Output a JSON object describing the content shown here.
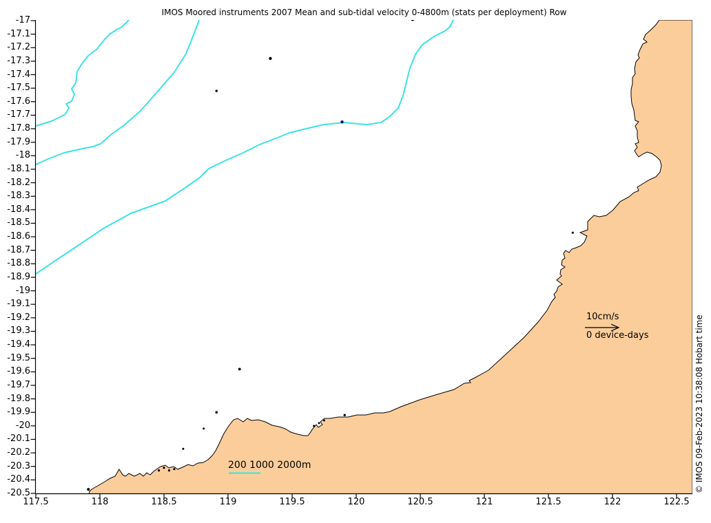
{
  "title": "IMOS Moored instruments 2007 Mean and sub-tidal velocity 0-4800m (stats per deployment) Row",
  "copyright": "© IMOS 09-Feb-2023 10:38:08 Hobart time",
  "axes": {
    "x_tick_labels": [
      "117.5",
      "118",
      "118.5",
      "119",
      "119.5",
      "120",
      "120.5",
      "121",
      "121.5",
      "122",
      "122.5"
    ],
    "y_tick_labels": [
      "-17",
      "-17.1",
      "-17.2",
      "-17.3",
      "-17.4",
      "-17.5",
      "-17.6",
      "-17.7",
      "-17.8",
      "-17.9",
      "-18",
      "-18.1",
      "-18.2",
      "-18.3",
      "-18.4",
      "-18.5",
      "-18.6",
      "-18.7",
      "-18.8",
      "-18.9",
      "-19",
      "-19.1",
      "-19.2",
      "-19.3",
      "-19.4",
      "-19.5",
      "-19.6",
      "-19.7",
      "-19.8",
      "-19.9",
      "-20",
      "-20.1",
      "-20.2",
      "-20.3",
      "-20.4",
      "-20.5"
    ]
  },
  "legend": {
    "velocity_scale_label": "10cm/s",
    "device_days_label": "0 device-days",
    "isobath_label": "200 1000 2000m"
  },
  "colors": {
    "land": "#FACD9B",
    "contour": "#3BE2E2",
    "coast": "#000000",
    "text": "#000000",
    "marker_navy": "#00008B"
  },
  "chart_data": {
    "type": "map",
    "title": "IMOS Moored instruments 2007 Mean and sub-tidal velocity 0-4800m (stats per deployment) Row",
    "xlabel": "",
    "ylabel": "",
    "x_range": [
      117.5,
      122.62
    ],
    "y_range": [
      -20.5,
      -17.0
    ],
    "x_ticks": [
      117.5,
      118,
      118.5,
      119,
      119.5,
      120,
      120.5,
      121,
      121.5,
      122,
      122.5
    ],
    "y_ticks": [
      -17,
      -17.1,
      -17.2,
      -17.3,
      -17.4,
      -17.5,
      -17.6,
      -17.7,
      -17.8,
      -17.9,
      -18,
      -18.1,
      -18.2,
      -18.3,
      -18.4,
      -18.5,
      -18.6,
      -18.7,
      -18.8,
      -18.9,
      -19,
      -19.1,
      -19.2,
      -19.3,
      -19.4,
      -19.5,
      -19.6,
      -19.7,
      -19.8,
      -19.9,
      -20,
      -20.1,
      -20.2,
      -20.3,
      -20.4,
      -20.5
    ],
    "grid": false,
    "bathymetry_contour_levels_m": [
      200,
      1000,
      2000
    ],
    "velocity_scale_cm_per_s": 10,
    "device_days": 0,
    "legend_position": "right-center",
    "islands": [
      {
        "lon": 119.33,
        "lat": -17.28,
        "size": 2.2,
        "color": "black"
      },
      {
        "lon": 118.91,
        "lat": -17.52,
        "size": 1.7,
        "color": "black"
      },
      {
        "lon": 119.89,
        "lat": -17.75,
        "size": 2.2,
        "color": "navy"
      },
      {
        "lon": 120.44,
        "lat": -16.99,
        "size": 2.5,
        "color": "black"
      },
      {
        "lon": 121.69,
        "lat": -18.57,
        "size": 1.6,
        "color": "black"
      },
      {
        "lon": 119.09,
        "lat": -19.58,
        "size": 1.9,
        "color": "black"
      },
      {
        "lon": 118.91,
        "lat": -19.9,
        "size": 1.8,
        "color": "black"
      },
      {
        "lon": 119.91,
        "lat": -19.92,
        "size": 1.7,
        "color": "black"
      },
      {
        "lon": 118.81,
        "lat": -20.02,
        "size": 1.5,
        "color": "black"
      },
      {
        "lon": 118.65,
        "lat": -20.17,
        "size": 1.5,
        "color": "black"
      },
      {
        "lon": 119.67,
        "lat": -20.0,
        "size": 1.5,
        "color": "black"
      },
      {
        "lon": 119.71,
        "lat": -19.98,
        "size": 1.5,
        "color": "black"
      },
      {
        "lon": 119.75,
        "lat": -19.96,
        "size": 1.5,
        "color": "black"
      },
      {
        "lon": 118.46,
        "lat": -20.33,
        "size": 1.6,
        "color": "black"
      },
      {
        "lon": 118.5,
        "lat": -20.31,
        "size": 1.6,
        "color": "black"
      },
      {
        "lon": 118.54,
        "lat": -20.33,
        "size": 1.6,
        "color": "black"
      },
      {
        "lon": 118.58,
        "lat": -20.32,
        "size": 1.6,
        "color": "black"
      },
      {
        "lon": 117.91,
        "lat": -20.47,
        "size": 2.0,
        "color": "black"
      }
    ]
  }
}
